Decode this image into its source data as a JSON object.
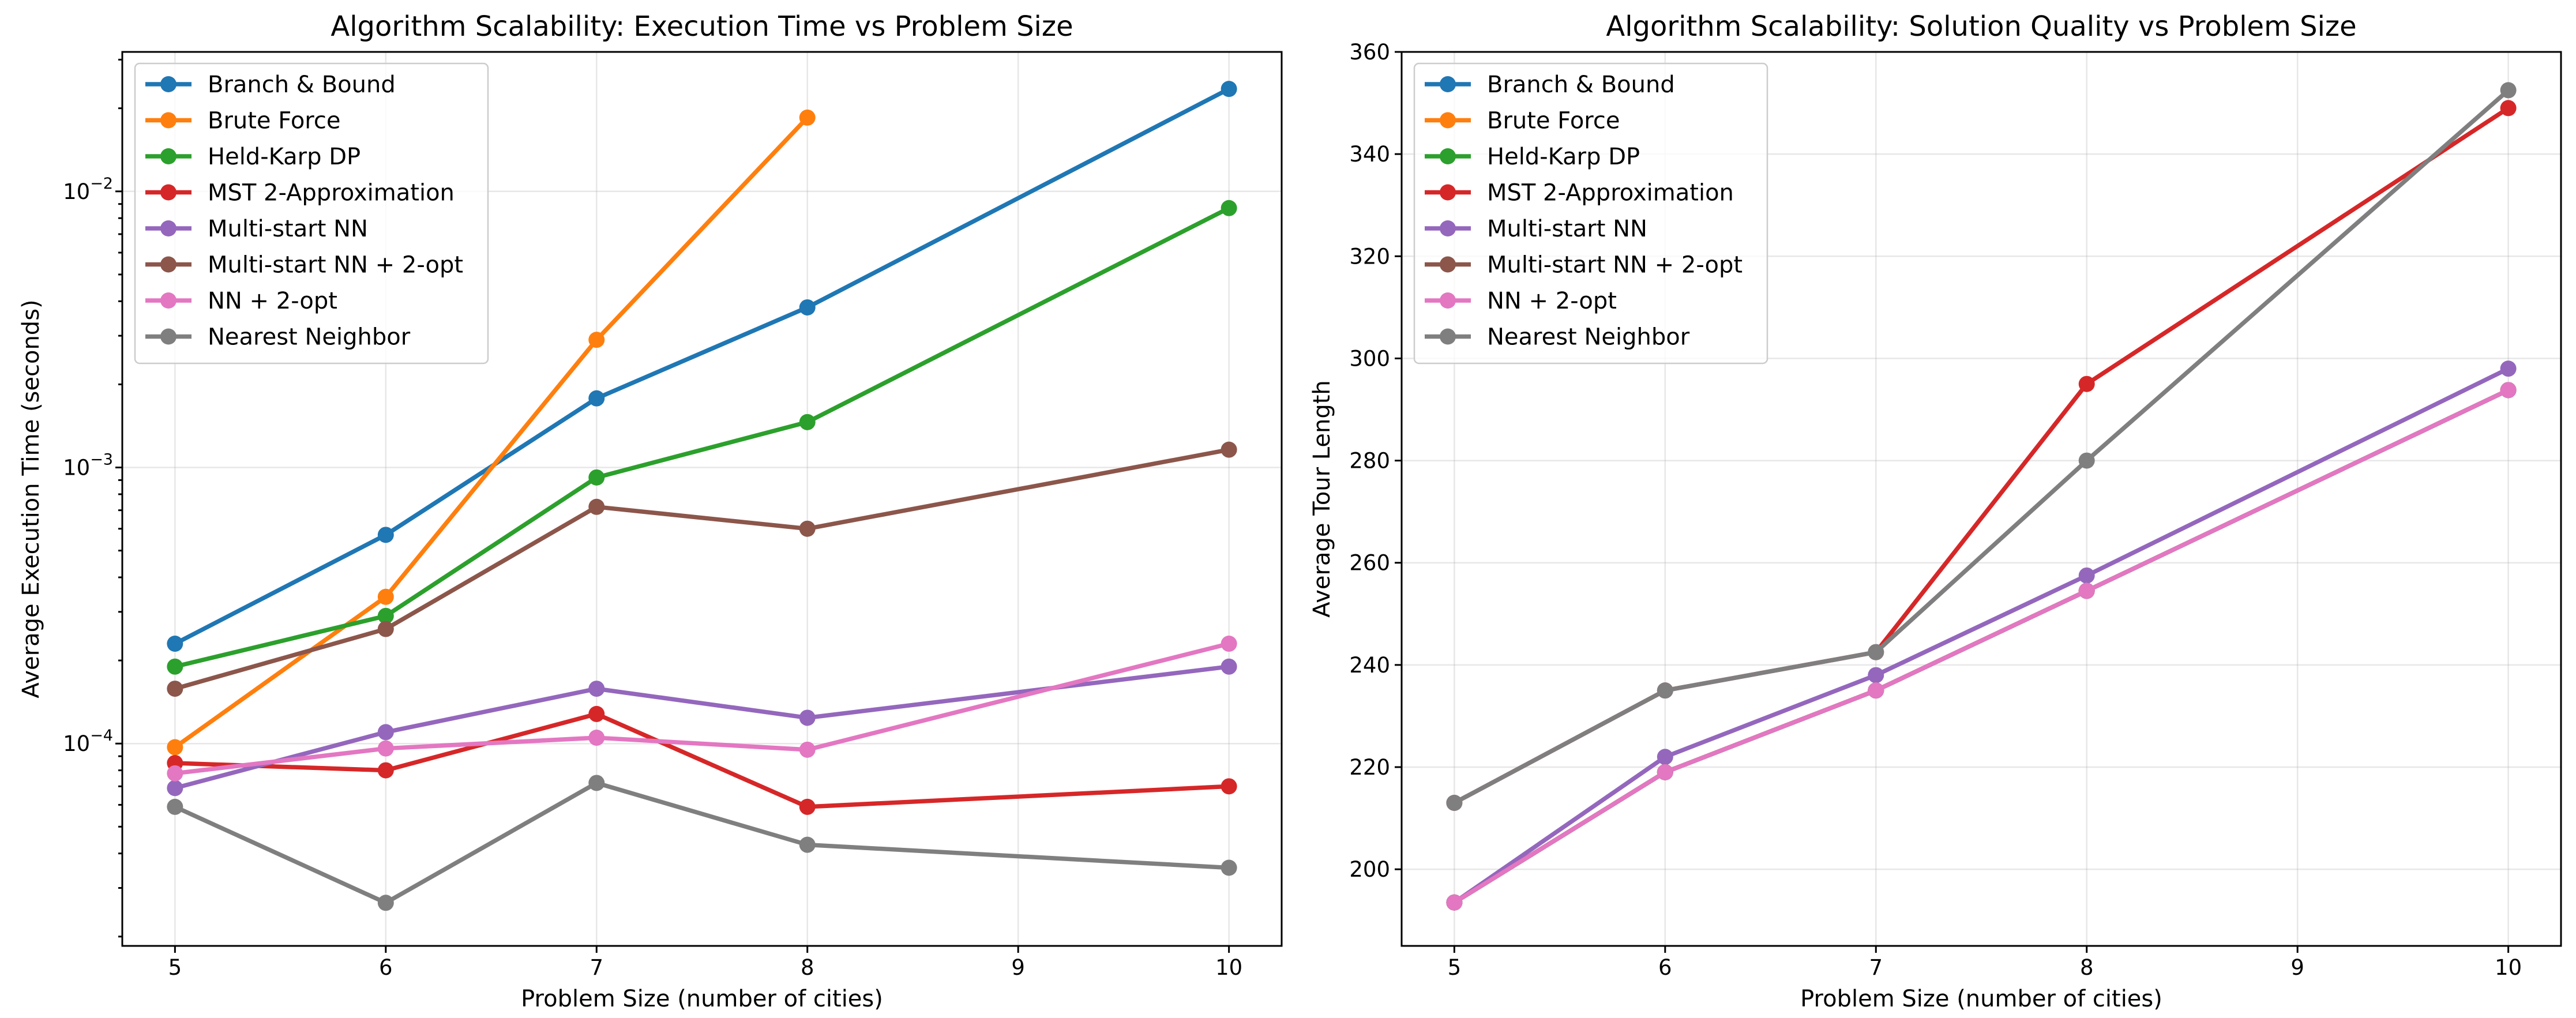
{
  "chart_data": [
    {
      "type": "line",
      "title": "Algorithm Scalability: Execution Time vs Problem Size",
      "xlabel": "Problem Size (number of cities)",
      "ylabel": "Average Execution Time (seconds)",
      "yscale": "log",
      "xlim": [
        4.75,
        10.25
      ],
      "ylim": [
        1.85e-05,
        0.032
      ],
      "x_ticks": [
        5,
        6,
        7,
        8,
        9,
        10
      ],
      "x_tick_labels": [
        "5",
        "6",
        "7",
        "8",
        "9",
        "10"
      ],
      "y_ticks": [
        0.0001,
        0.001,
        0.01
      ],
      "y_tick_labels": [
        "10",
        "10",
        "10"
      ],
      "y_tick_exponents": [
        "−4",
        "−3",
        "−2"
      ],
      "grid": true,
      "legend": "upper-left",
      "series": [
        {
          "name": "Branch & Bound",
          "color": "#1f77b4",
          "x": [
            5,
            6,
            7,
            8,
            10
          ],
          "y": [
            0.00023,
            0.00057,
            0.00178,
            0.0038,
            0.0235
          ]
        },
        {
          "name": "Brute Force",
          "color": "#ff7f0e",
          "x": [
            5,
            6,
            7,
            8
          ],
          "y": [
            9.7e-05,
            0.00034,
            0.0029,
            0.0185
          ]
        },
        {
          "name": "Held-Karp DP",
          "color": "#2ca02c",
          "x": [
            5,
            6,
            7,
            8,
            10
          ],
          "y": [
            0.00019,
            0.00029,
            0.00092,
            0.00146,
            0.0087
          ]
        },
        {
          "name": "MST 2-Approximation",
          "color": "#d62728",
          "x": [
            5,
            6,
            7,
            8,
            10
          ],
          "y": [
            8.5e-05,
            8e-05,
            0.000128,
            5.9e-05,
            7e-05
          ]
        },
        {
          "name": "Multi-start NN",
          "color": "#9467bd",
          "x": [
            5,
            6,
            7,
            8,
            10
          ],
          "y": [
            6.9e-05,
            0.00011,
            0.000158,
            0.000124,
            0.00019
          ]
        },
        {
          "name": "Multi-start NN + 2-opt",
          "color": "#8c564b",
          "x": [
            5,
            6,
            7,
            8,
            10
          ],
          "y": [
            0.000158,
            0.00026,
            0.00072,
            0.0006,
            0.00116
          ]
        },
        {
          "name": "NN + 2-opt",
          "color": "#e377c2",
          "x": [
            5,
            6,
            7,
            8,
            10
          ],
          "y": [
            7.8e-05,
            9.6e-05,
            0.000105,
            9.5e-05,
            0.00023
          ]
        },
        {
          "name": "Nearest Neighbor",
          "color": "#7f7f7f",
          "x": [
            5,
            6,
            7,
            8,
            10
          ],
          "y": [
            5.9e-05,
            2.65e-05,
            7.2e-05,
            4.3e-05,
            3.55e-05
          ]
        }
      ]
    },
    {
      "type": "line",
      "title": "Algorithm Scalability: Solution Quality vs Problem Size",
      "xlabel": "Problem Size (number of cities)",
      "ylabel": "Average Tour Length",
      "yscale": "linear",
      "xlim": [
        4.75,
        10.25
      ],
      "ylim": [
        185,
        360
      ],
      "x_ticks": [
        5,
        6,
        7,
        8,
        9,
        10
      ],
      "x_tick_labels": [
        "5",
        "6",
        "7",
        "8",
        "9",
        "10"
      ],
      "y_ticks": [
        200,
        220,
        240,
        260,
        280,
        300,
        320,
        340,
        360
      ],
      "y_tick_labels": [
        "200",
        "220",
        "240",
        "260",
        "280",
        "300",
        "320",
        "340",
        "360"
      ],
      "grid": true,
      "legend": "upper-left",
      "series": [
        {
          "name": "Branch & Bound",
          "color": "#1f77b4",
          "x": [
            5,
            6,
            7,
            8,
            10
          ],
          "y": [
            193.5,
            219,
            235,
            254.5,
            293.8
          ]
        },
        {
          "name": "Brute Force",
          "color": "#ff7f0e",
          "x": [
            5,
            6,
            7,
            8
          ],
          "y": [
            193.5,
            219,
            235,
            254.5
          ]
        },
        {
          "name": "Held-Karp DP",
          "color": "#2ca02c",
          "x": [
            5,
            6,
            7,
            8,
            10
          ],
          "y": [
            193.5,
            219,
            235,
            254.5,
            293.8
          ]
        },
        {
          "name": "MST 2-Approximation",
          "color": "#d62728",
          "x": [
            5,
            6,
            7,
            8,
            10
          ],
          "y": [
            213,
            235,
            242.5,
            295,
            349
          ]
        },
        {
          "name": "Multi-start NN",
          "color": "#9467bd",
          "x": [
            5,
            6,
            7,
            8,
            10
          ],
          "y": [
            193.5,
            222,
            238,
            257.5,
            298
          ]
        },
        {
          "name": "Multi-start NN + 2-opt",
          "color": "#8c564b",
          "x": [
            5,
            6,
            7,
            8,
            10
          ],
          "y": [
            193.5,
            219,
            235,
            254.5,
            293.8
          ]
        },
        {
          "name": "NN + 2-opt",
          "color": "#e377c2",
          "x": [
            5,
            6,
            7,
            8,
            10
          ],
          "y": [
            193.5,
            219,
            235,
            254.5,
            293.8
          ]
        },
        {
          "name": "Nearest Neighbor",
          "color": "#7f7f7f",
          "x": [
            5,
            6,
            7,
            8,
            10
          ],
          "y": [
            213,
            235,
            242.5,
            280,
            352.5
          ]
        }
      ]
    }
  ]
}
